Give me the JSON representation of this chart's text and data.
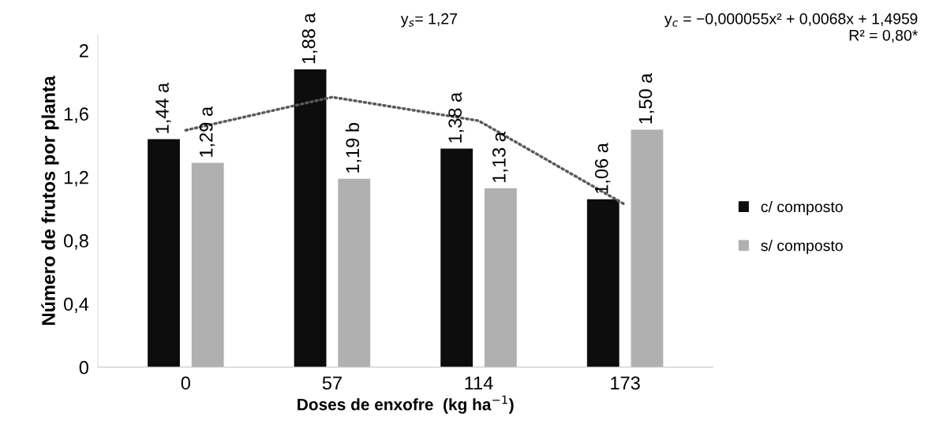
{
  "chart_data": {
    "type": "bar",
    "xlabel": "Doses de enxofre  (kg ha$^{−1}$)",
    "ylabel": "Número de frutos por planta",
    "categories": [
      "0",
      "57",
      "114",
      "173"
    ],
    "series": [
      {
        "name": "c/ composto",
        "color": "#0d0d0d",
        "values": [
          1.44,
          1.88,
          1.38,
          1.06
        ],
        "value_labels": [
          "1,44 a",
          "1,88 a",
          "1,38 a",
          "1,06 a"
        ]
      },
      {
        "name": "s/ composto",
        "color": "#b0b0b0",
        "values": [
          1.29,
          1.19,
          1.13,
          1.5
        ],
        "value_labels": [
          "1,29 a",
          "1,19 b",
          "1,13 a",
          "1,50 a"
        ]
      },
      {
        "type": "line",
        "color": "#595959",
        "line_style": "dotted",
        "x": [
          "0",
          "57",
          "114",
          "173"
        ],
        "values": [
          1.496,
          1.705,
          1.556,
          1.026
        ]
      }
    ],
    "ylim": [
      0,
      2.1
    ],
    "yticks": [
      {
        "value": 0,
        "label": "0"
      },
      {
        "value": 0.4,
        "label": "0,4"
      },
      {
        "value": 0.8,
        "label": "0,8"
      },
      {
        "value": 1.2,
        "label": "1,2"
      },
      {
        "value": 1.6,
        "label": "1,6"
      },
      {
        "value": 2,
        "label": "2"
      }
    ],
    "grid": false,
    "legend": "right",
    "annotations": [
      "y$_{s}$= 1,27",
      "y$_{c}$ = −0,000055x² + 0,0068x + 1,4959\nR² = 0,80*"
    ]
  }
}
